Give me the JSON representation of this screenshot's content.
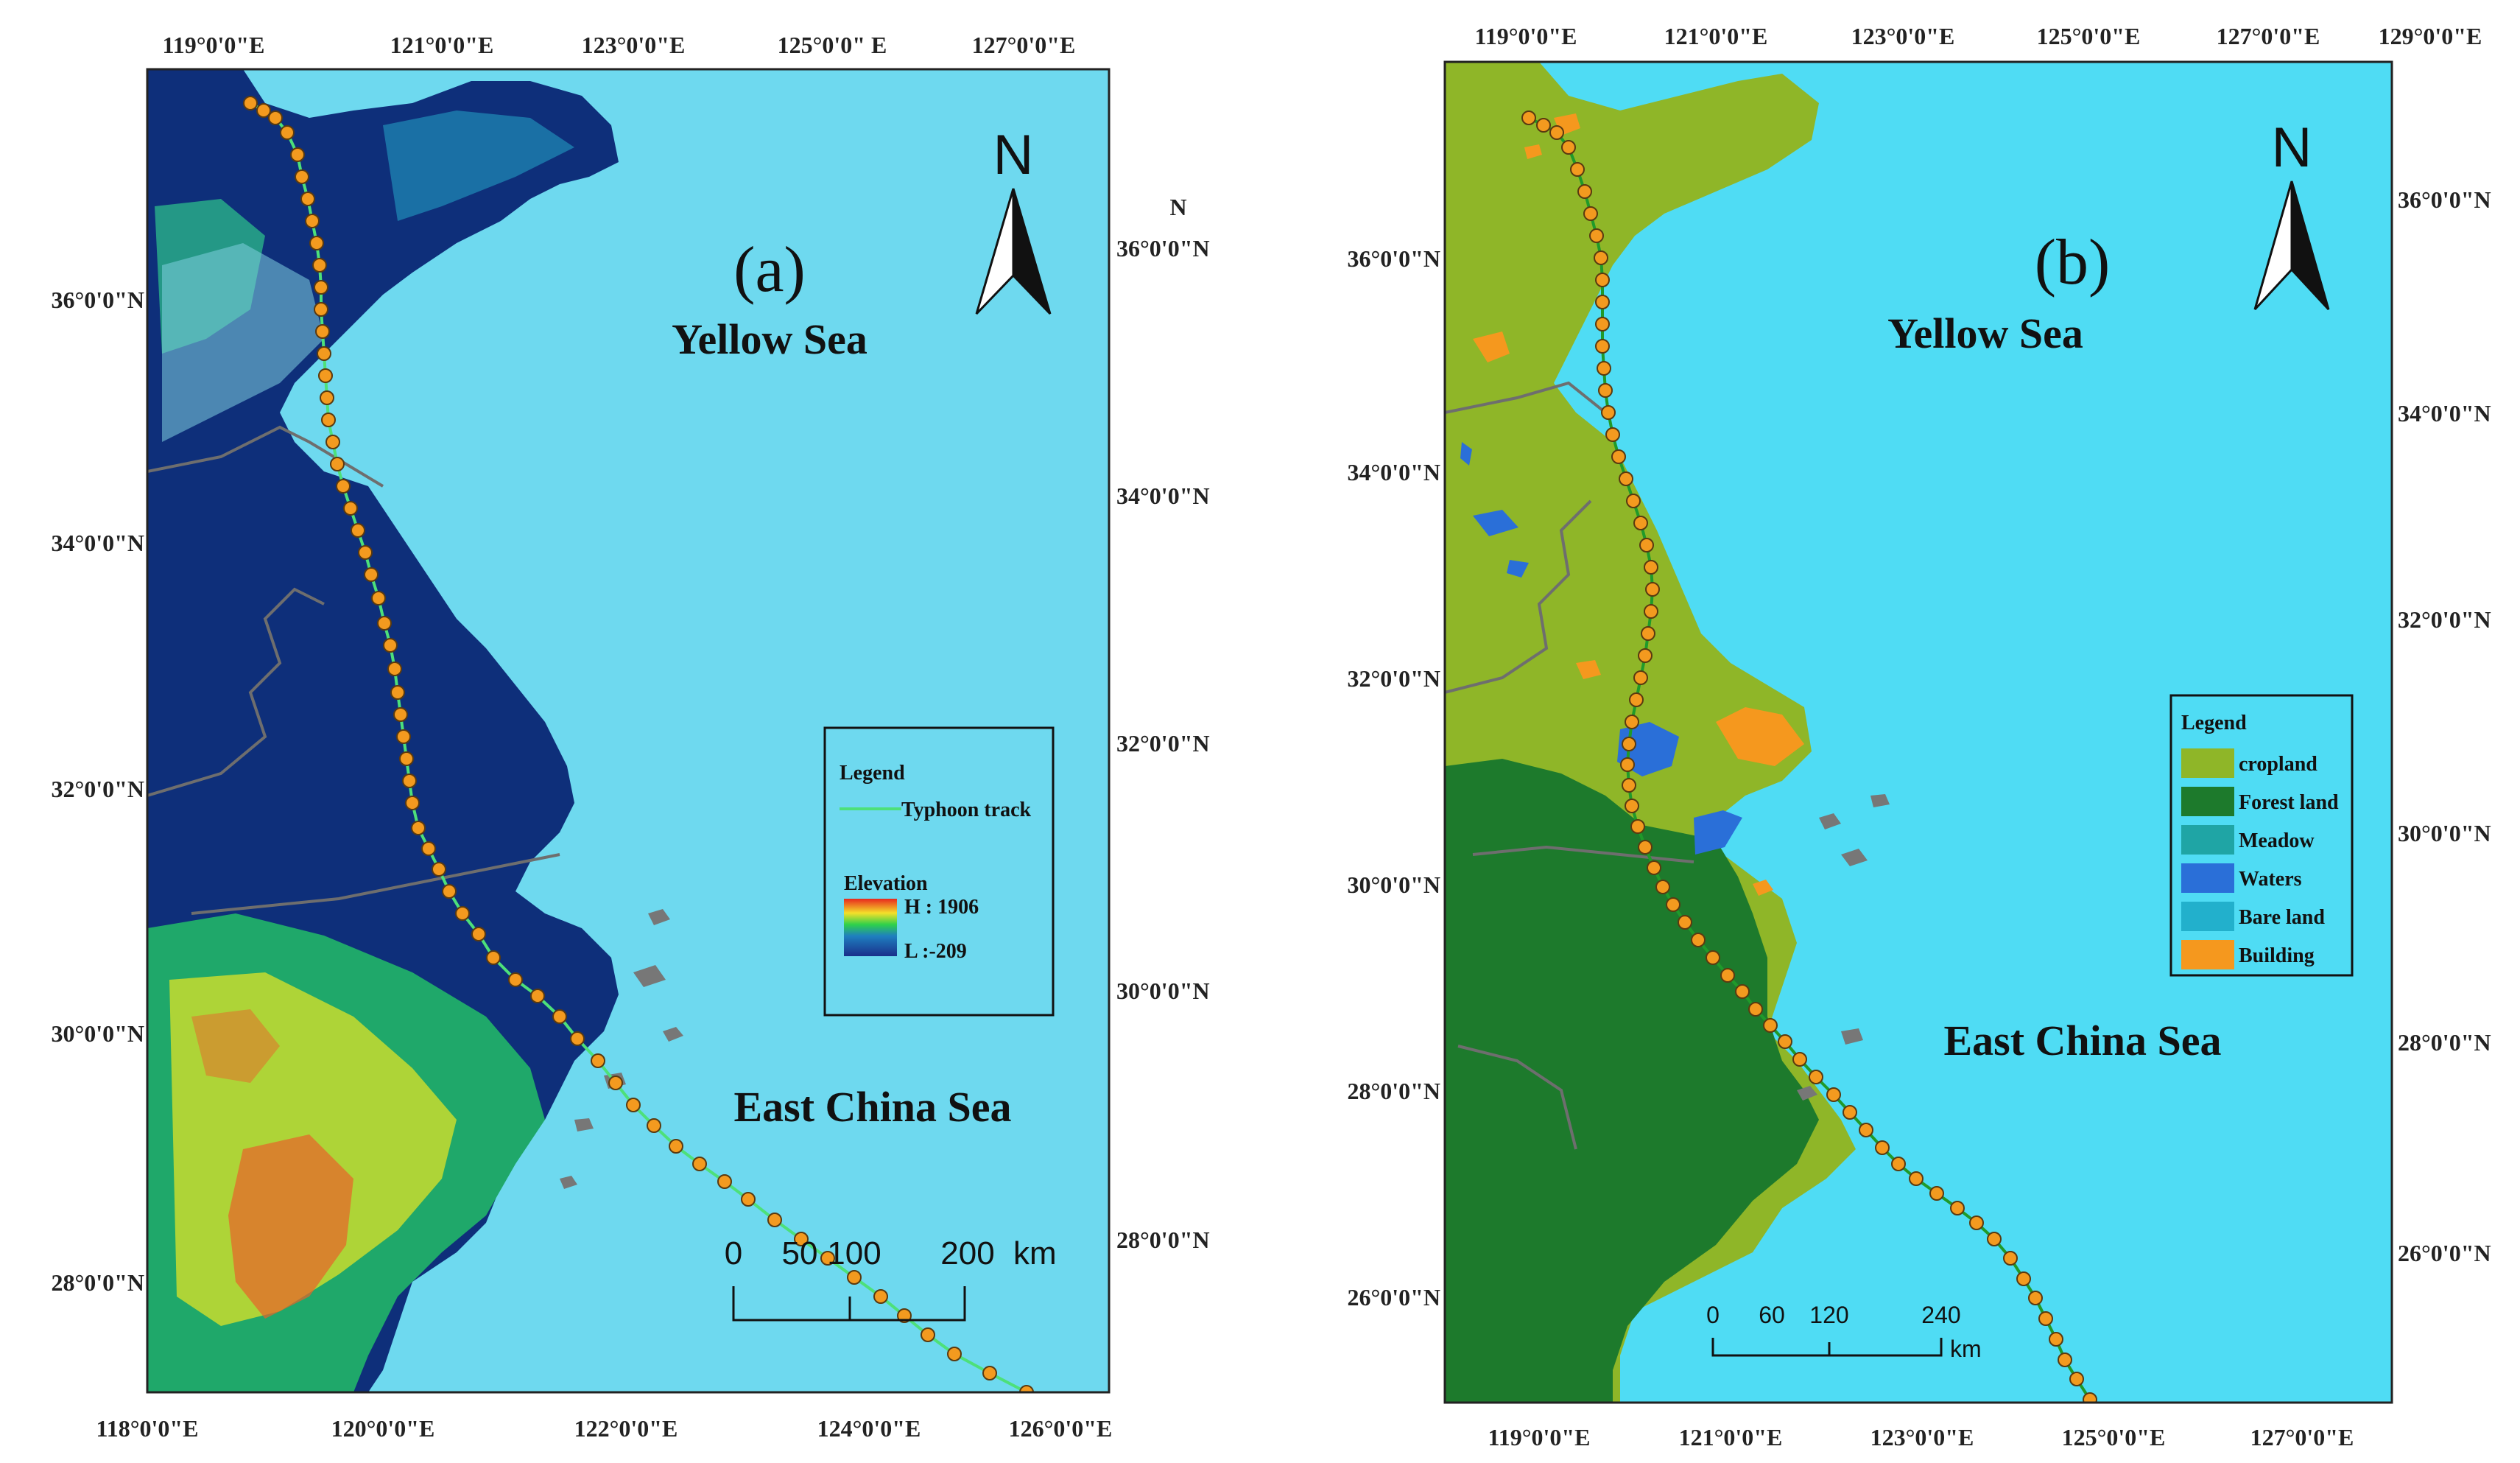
{
  "colors": {
    "sea": "#6ed9ef",
    "sea_b": "#4fdcf4",
    "lowland": "#0e2f7a",
    "track_a": "#4de07a",
    "track_b": "#1f9a2a",
    "dot": "#f39a1f",
    "boundary": "#6e6e6e"
  },
  "panel_a": {
    "label": "(a)",
    "north": "N",
    "yellow_sea": "Yellow Sea",
    "east_china_sea": "East China Sea",
    "top_ticks": [
      "119°0'0\"E",
      "121°0'0\"E",
      "123°0'0\"E",
      "125°0'0\" E",
      "127°0'0\"E"
    ],
    "bottom_ticks": [
      "118°0'0\"E",
      "120°0'0\"E",
      "122°0'0\"E",
      "124°0'0\"E",
      "126°0'0\"E"
    ],
    "left_ticks": [
      "36°0'0\"N",
      "34°0'0\"N",
      "32°0'0\"N",
      "30°0'0\"N",
      "28°0'0\"N"
    ],
    "right_ticks": [
      "36°0'0\"N",
      "34°0'0\"N",
      "32°0'0\"N",
      "30°0'0\"N",
      "28°0'0\"N"
    ],
    "right_top": "N",
    "legend": {
      "title": "Legend",
      "track": "Typhoon track",
      "elevation_title": "Elevation",
      "high": "H : 1906",
      "low": "L :-209"
    },
    "scale": {
      "labels": [
        "0",
        "50",
        "100",
        "200"
      ],
      "unit": "km"
    }
  },
  "panel_b": {
    "label": "(b)",
    "north": "N",
    "yellow_sea": "Yellow Sea",
    "east_china_sea": "East China Sea",
    "top_ticks": [
      "119°0'0\"E",
      "121°0'0\"E",
      "123°0'0\"E",
      "125°0'0\"E",
      "127°0'0\"E",
      "129°0'0\"E"
    ],
    "bottom_ticks": [
      "119°0'0\"E",
      "121°0'0\"E",
      "123°0'0\"E",
      "125°0'0\"E",
      "127°0'0\"E"
    ],
    "left_ticks": [
      "36°0'0\"N",
      "34°0'0\"N",
      "32°0'0\"N",
      "30°0'0\"N",
      "28°0'0\"N",
      "26°0'0\"N"
    ],
    "right_ticks": [
      "36°0'0\"N",
      "34°0'0\"N",
      "32°0'0\"N",
      "30°0'0\"N",
      "28°0'0\"N",
      "26°0'0\"N"
    ],
    "legend": {
      "title": "Legend",
      "items": [
        {
          "label": "cropland",
          "color": "#8fb628"
        },
        {
          "label": "Forest land",
          "color": "#1d7a2c"
        },
        {
          "label": "Meadow",
          "color": "#1fa5a5"
        },
        {
          "label": "Waters",
          "color": "#2a6fd8"
        },
        {
          "label": "Bare land",
          "color": "#22b0cc"
        },
        {
          "label": "Building",
          "color": "#f5981e"
        }
      ]
    },
    "scale": {
      "labels": [
        "0",
        "60",
        "120",
        "240"
      ],
      "unit": "km"
    }
  }
}
